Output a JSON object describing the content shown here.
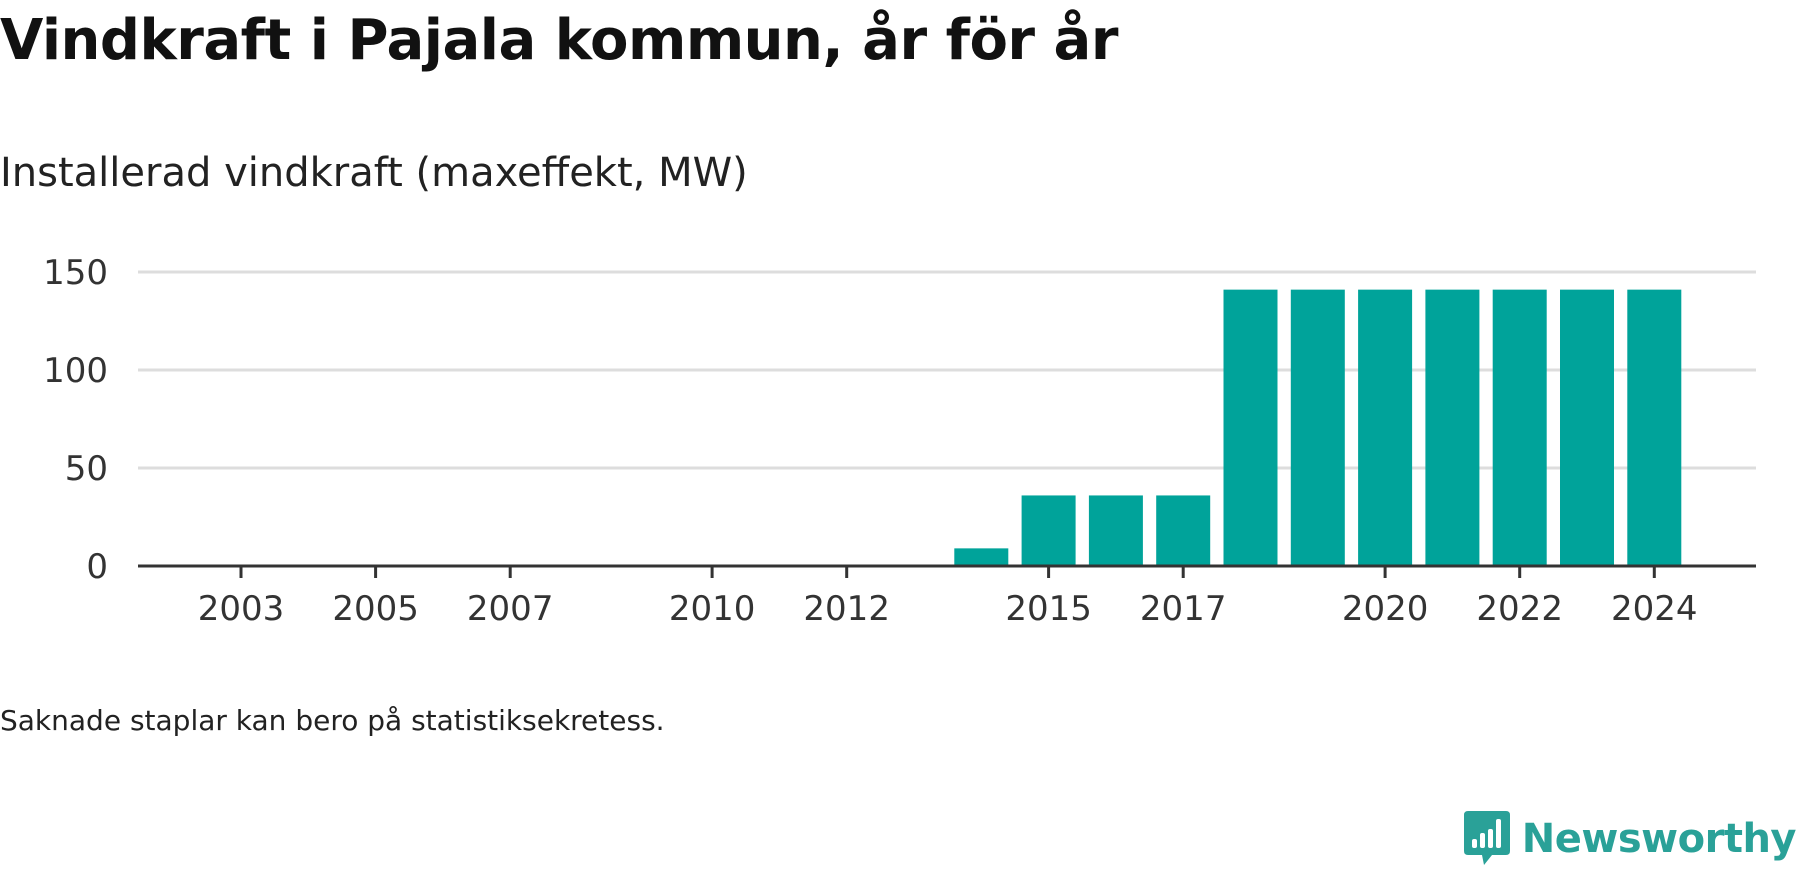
{
  "title": "Vindkraft i Pajala kommun, år för år",
  "subtitle": "Installerad vindkraft (maxeffekt, MW)",
  "footnote": "Saknade staplar kan bero på statistiksekretess.",
  "logo": {
    "text": "Newsworthy",
    "icon": "newsworthy-logo-icon"
  },
  "colors": {
    "bar": "#00a39a",
    "grid": "#dddddd",
    "axis": "#333333",
    "logo": "#2aa198"
  },
  "chart_data": {
    "type": "bar",
    "title": "Vindkraft i Pajala kommun, år för år",
    "ylabel": "Installerad vindkraft (maxeffekt, MW)",
    "categories": [
      2003,
      2004,
      2005,
      2006,
      2007,
      2008,
      2009,
      2010,
      2011,
      2012,
      2013,
      2014,
      2015,
      2016,
      2017,
      2018,
      2019,
      2020,
      2021,
      2022,
      2023,
      2024
    ],
    "values": [
      0,
      0,
      0,
      0,
      0,
      0,
      0,
      0,
      0,
      0,
      0,
      9,
      36,
      36,
      36,
      141,
      141,
      141,
      141,
      141,
      141,
      141
    ],
    "ylim": [
      0,
      150
    ],
    "yticks": [
      0,
      50,
      100,
      150
    ],
    "xticks": [
      "2003",
      "2005",
      "2007",
      "2010",
      "2012",
      "2015",
      "2017",
      "2020",
      "2022",
      "2024"
    ],
    "grid": true,
    "legend": "none"
  }
}
